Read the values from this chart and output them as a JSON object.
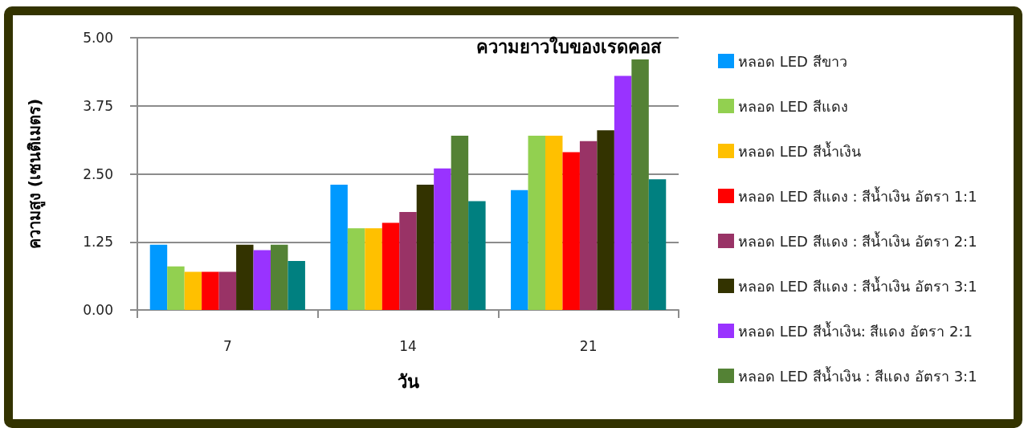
{
  "chart_data": {
    "type": "bar",
    "title": "ความยาวใบของเรดคอส",
    "xlabel": "วัน",
    "ylabel": "ความสูง (เซนติเมตร)",
    "categories": [
      "7",
      "14",
      "21"
    ],
    "series": [
      {
        "name": "หลอด LED สีขาว",
        "color": "#0099ff",
        "values": [
          1.2,
          2.3,
          2.2
        ]
      },
      {
        "name": "หลอด LED สีแดง",
        "color": "#92d050",
        "values": [
          0.8,
          1.5,
          3.2
        ]
      },
      {
        "name": "หลอด LED สีน้ำเงิน",
        "color": "#ffc000",
        "values": [
          0.7,
          1.5,
          3.2
        ]
      },
      {
        "name": "หลอด LED สีแดง : สีน้ำเงิน อัตรา 1:1",
        "color": "#ff0000",
        "values": [
          0.7,
          1.6,
          2.9
        ]
      },
      {
        "name": "หลอด LED สีแดง : สีน้ำเงิน อัตรา 2:1",
        "color": "#993366",
        "values": [
          0.7,
          1.8,
          3.1
        ]
      },
      {
        "name": "หลอด LED สีแดง : สีน้ำเงิน อัตรา 3:1",
        "color": "#333300",
        "values": [
          1.2,
          2.3,
          3.3
        ]
      },
      {
        "name": "หลอด LED สีน้ำเงิน: สีแดง อัตรา 2:1",
        "color": "#9933ff",
        "values": [
          1.1,
          2.6,
          4.3
        ]
      },
      {
        "name": "หลอด LED สีน้ำเงิน : สีแดง อัตรา 3:1",
        "color": "#548235",
        "values": [
          1.2,
          3.2,
          4.6
        ]
      },
      {
        "color": "#008080",
        "values": [
          0.9,
          2.0,
          2.4
        ]
      }
    ],
    "ylim": [
      0,
      5
    ],
    "yticks": [
      {
        "value": 0,
        "label": "0.00"
      },
      1.25,
      {
        "value": 2.5,
        "label": "2.50"
      },
      3.75,
      {
        "value": 5,
        "label": "5.00"
      }
    ],
    "grid": "y",
    "legend": "right"
  }
}
